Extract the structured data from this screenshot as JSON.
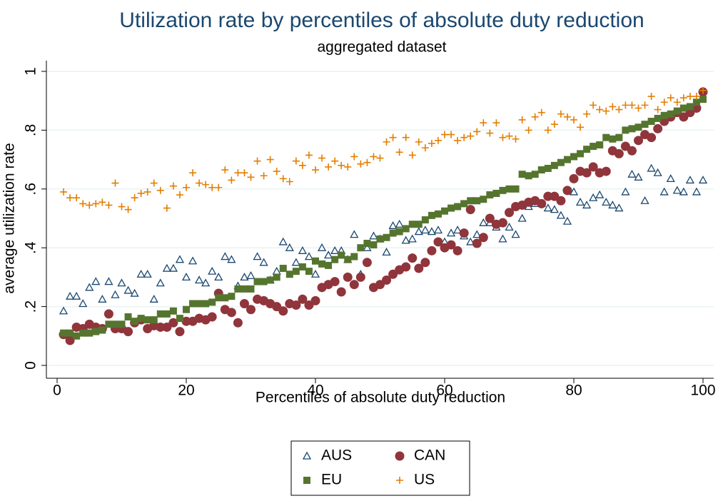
{
  "chart_data": {
    "type": "scatter",
    "title": "Utilization rate by percentiles of absolute duty reduction",
    "subtitle": "aggregated dataset",
    "x_label": "Percentiles of absolute duty reduction",
    "y_label": "average utilization rate",
    "x": [
      1,
      2,
      3,
      4,
      5,
      6,
      7,
      8,
      9,
      10,
      11,
      12,
      13,
      14,
      15,
      16,
      17,
      18,
      19,
      20,
      21,
      22,
      23,
      24,
      25,
      26,
      27,
      28,
      29,
      30,
      31,
      32,
      33,
      34,
      35,
      36,
      37,
      38,
      39,
      40,
      41,
      42,
      43,
      44,
      45,
      46,
      47,
      48,
      49,
      50,
      51,
      52,
      53,
      54,
      55,
      56,
      57,
      58,
      59,
      60,
      61,
      62,
      63,
      64,
      65,
      66,
      67,
      68,
      69,
      70,
      71,
      72,
      73,
      74,
      75,
      76,
      77,
      78,
      79,
      80,
      81,
      82,
      83,
      84,
      85,
      86,
      87,
      88,
      89,
      90,
      91,
      92,
      93,
      94,
      95,
      96,
      97,
      98,
      99,
      100
    ],
    "series": [
      {
        "name": "AUS",
        "color": "#1a476f",
        "marker": "triangle",
        "values": [
          0.185,
          0.235,
          0.235,
          0.21,
          0.265,
          0.285,
          0.225,
          0.285,
          0.24,
          0.28,
          0.255,
          0.245,
          0.31,
          0.31,
          0.225,
          0.28,
          0.33,
          0.33,
          0.36,
          0.3,
          0.355,
          0.29,
          0.28,
          0.32,
          0.3,
          0.37,
          0.36,
          0.27,
          0.3,
          0.305,
          0.37,
          0.35,
          0.29,
          0.32,
          0.42,
          0.4,
          0.35,
          0.39,
          0.37,
          0.31,
          0.4,
          0.375,
          0.39,
          0.39,
          0.36,
          0.445,
          0.31,
          0.4,
          0.44,
          0.43,
          0.385,
          0.475,
          0.48,
          0.425,
          0.43,
          0.455,
          0.46,
          0.455,
          0.46,
          0.42,
          0.45,
          0.46,
          0.44,
          0.42,
          0.445,
          0.485,
          0.485,
          0.47,
          0.43,
          0.47,
          0.445,
          0.5,
          0.54,
          0.55,
          0.55,
          0.535,
          0.53,
          0.51,
          0.49,
          0.59,
          0.555,
          0.545,
          0.57,
          0.58,
          0.555,
          0.545,
          0.535,
          0.59,
          0.65,
          0.64,
          0.56,
          0.67,
          0.655,
          0.59,
          0.635,
          0.595,
          0.59,
          0.63,
          0.59,
          0.63
        ]
      },
      {
        "name": "CAN",
        "color": "#90353b",
        "marker": "circle",
        "values": [
          0.105,
          0.085,
          0.13,
          0.125,
          0.14,
          0.13,
          0.125,
          0.175,
          0.125,
          0.125,
          0.115,
          0.145,
          0.155,
          0.125,
          0.135,
          0.13,
          0.13,
          0.145,
          0.115,
          0.15,
          0.15,
          0.16,
          0.155,
          0.165,
          0.245,
          0.19,
          0.18,
          0.145,
          0.21,
          0.19,
          0.225,
          0.22,
          0.21,
          0.2,
          0.185,
          0.21,
          0.205,
          0.225,
          0.205,
          0.22,
          0.265,
          0.275,
          0.285,
          0.25,
          0.3,
          0.275,
          0.3,
          0.35,
          0.265,
          0.275,
          0.29,
          0.31,
          0.325,
          0.335,
          0.365,
          0.33,
          0.35,
          0.39,
          0.42,
          0.4,
          0.41,
          0.39,
          0.45,
          0.53,
          0.415,
          0.435,
          0.5,
          0.48,
          0.485,
          0.52,
          0.54,
          0.545,
          0.555,
          0.56,
          0.55,
          0.575,
          0.575,
          0.56,
          0.595,
          0.635,
          0.66,
          0.655,
          0.675,
          0.655,
          0.66,
          0.73,
          0.72,
          0.745,
          0.73,
          0.765,
          0.785,
          0.775,
          0.805,
          0.83,
          0.845,
          0.86,
          0.845,
          0.86,
          0.875,
          0.93
        ]
      },
      {
        "name": "EU",
        "color": "#55752f",
        "marker": "square",
        "values": [
          0.11,
          0.11,
          0.1,
          0.11,
          0.11,
          0.115,
          0.12,
          0.14,
          0.14,
          0.14,
          0.165,
          0.15,
          0.16,
          0.155,
          0.155,
          0.175,
          0.175,
          0.185,
          0.16,
          0.19,
          0.21,
          0.21,
          0.21,
          0.215,
          0.23,
          0.23,
          0.235,
          0.26,
          0.26,
          0.26,
          0.285,
          0.285,
          0.29,
          0.3,
          0.33,
          0.31,
          0.32,
          0.335,
          0.32,
          0.355,
          0.345,
          0.34,
          0.36,
          0.375,
          0.36,
          0.37,
          0.4,
          0.415,
          0.41,
          0.43,
          0.435,
          0.45,
          0.455,
          0.465,
          0.48,
          0.48,
          0.495,
          0.51,
          0.515,
          0.525,
          0.535,
          0.54,
          0.55,
          0.56,
          0.56,
          0.565,
          0.58,
          0.585,
          0.595,
          0.6,
          0.6,
          0.65,
          0.645,
          0.65,
          0.665,
          0.67,
          0.68,
          0.69,
          0.7,
          0.71,
          0.72,
          0.735,
          0.745,
          0.75,
          0.775,
          0.77,
          0.775,
          0.8,
          0.805,
          0.81,
          0.82,
          0.83,
          0.84,
          0.85,
          0.855,
          0.865,
          0.875,
          0.88,
          0.895,
          0.905
        ]
      },
      {
        "name": "US",
        "color": "#e37e00",
        "marker": "plus",
        "values": [
          0.59,
          0.57,
          0.57,
          0.55,
          0.545,
          0.55,
          0.555,
          0.545,
          0.62,
          0.54,
          0.53,
          0.57,
          0.585,
          0.59,
          0.62,
          0.595,
          0.535,
          0.61,
          0.58,
          0.605,
          0.655,
          0.62,
          0.615,
          0.605,
          0.605,
          0.665,
          0.63,
          0.655,
          0.655,
          0.64,
          0.695,
          0.645,
          0.7,
          0.66,
          0.635,
          0.625,
          0.695,
          0.68,
          0.715,
          0.665,
          0.705,
          0.675,
          0.695,
          0.68,
          0.675,
          0.71,
          0.685,
          0.69,
          0.71,
          0.705,
          0.76,
          0.775,
          0.725,
          0.775,
          0.715,
          0.76,
          0.74,
          0.755,
          0.765,
          0.785,
          0.785,
          0.765,
          0.775,
          0.78,
          0.795,
          0.825,
          0.79,
          0.825,
          0.775,
          0.78,
          0.77,
          0.835,
          0.8,
          0.845,
          0.86,
          0.8,
          0.82,
          0.855,
          0.845,
          0.835,
          0.81,
          0.855,
          0.885,
          0.87,
          0.865,
          0.88,
          0.87,
          0.885,
          0.885,
          0.875,
          0.885,
          0.915,
          0.87,
          0.895,
          0.91,
          0.895,
          0.91,
          0.915,
          0.915,
          0.935
        ]
      }
    ],
    "xlim": [
      0,
      100
    ],
    "xticks": [
      0,
      20,
      40,
      60,
      80,
      100
    ],
    "ylim": [
      0,
      1
    ],
    "yticks": [
      0,
      {
        "value": 0.2,
        "label": ".2"
      },
      {
        "value": 0.4,
        "label": ".4"
      },
      {
        "value": 0.6,
        "label": ".6"
      },
      {
        "value": 0.8,
        "label": ".8"
      },
      1
    ],
    "grid": true,
    "legend": "bottom"
  }
}
